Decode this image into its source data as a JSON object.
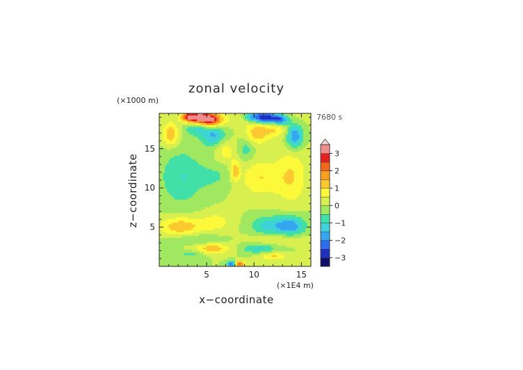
{
  "chart_data": {
    "type": "heatmap",
    "title": "zonal velocity",
    "xlabel": "x−coordinate",
    "ylabel": "z−coordinate",
    "x_unit_label": "(×1E4 m)",
    "y_unit_label": "(×1000 m)",
    "time_label": "7680 s",
    "xlim": [
      0,
      16
    ],
    "ylim": [
      0,
      19.5
    ],
    "x_ticks": [
      5,
      10,
      15
    ],
    "y_ticks": [
      5,
      10,
      15
    ],
    "grid": false,
    "colorbar": {
      "levels": [
        -3.5,
        -3.0,
        -2.5,
        -2.0,
        -1.5,
        -1.0,
        -0.5,
        0.0,
        0.5,
        1.0,
        1.5,
        2.0,
        2.5,
        3.0,
        3.5
      ],
      "colors": [
        "#10106a",
        "#1f2fc0",
        "#2f6cf0",
        "#35a6f0",
        "#3fd3d9",
        "#40e0a8",
        "#a0e860",
        "#d7f050",
        "#fcf83a",
        "#fcc830",
        "#f7a020",
        "#f06818",
        "#e52020",
        "#f08e8e"
      ],
      "tick_values": [
        -3,
        -2,
        -1,
        0,
        1,
        2,
        3
      ],
      "tick_labels": [
        "−3",
        "−2",
        "−1",
        "0",
        "1",
        "2",
        "3"
      ],
      "extend": "max"
    },
    "features_note_free": true,
    "features": [
      {
        "x": 8.0,
        "z": 19.0,
        "sx": 5.5,
        "sz": 0.8,
        "v": 0.35
      },
      {
        "x": 4.2,
        "z": 19.0,
        "sx": 0.9,
        "sz": 0.55,
        "v": 3.2
      },
      {
        "x": 5.6,
        "z": 18.6,
        "sx": 0.8,
        "sz": 0.6,
        "v": 2.4
      },
      {
        "x": 3.0,
        "z": 19.1,
        "sx": 0.5,
        "sz": 0.4,
        "v": 1.6
      },
      {
        "x": 11.2,
        "z": 19.0,
        "sx": 0.9,
        "sz": 0.55,
        "v": -3.3
      },
      {
        "x": 12.8,
        "z": 18.7,
        "sx": 0.6,
        "sz": 0.45,
        "v": -2.3
      },
      {
        "x": 9.7,
        "z": 19.1,
        "sx": 0.6,
        "sz": 0.4,
        "v": -1.4
      },
      {
        "x": 3.8,
        "z": 17.6,
        "sx": 0.8,
        "sz": 0.6,
        "v": -1.0
      },
      {
        "x": 5.7,
        "z": 16.8,
        "sx": 0.9,
        "sz": 1.0,
        "v": -1.6
      },
      {
        "x": 1.2,
        "z": 16.8,
        "sx": 0.6,
        "sz": 1.0,
        "v": 1.5
      },
      {
        "x": 7.0,
        "z": 14.8,
        "sx": 0.7,
        "sz": 1.0,
        "v": 0.8
      },
      {
        "x": 10.3,
        "z": 17.0,
        "sx": 0.9,
        "sz": 1.0,
        "v": 1.3
      },
      {
        "x": 12.2,
        "z": 17.5,
        "sx": 0.9,
        "sz": 0.7,
        "v": 0.9
      },
      {
        "x": 14.3,
        "z": 16.6,
        "sx": 0.6,
        "sz": 1.1,
        "v": -2.1
      },
      {
        "x": 9.2,
        "z": 15.0,
        "sx": 0.6,
        "sz": 1.0,
        "v": -0.8
      },
      {
        "x": 2.3,
        "z": 11.4,
        "sx": 1.6,
        "sz": 2.6,
        "v": -0.95
      },
      {
        "x": 5.8,
        "z": 11.5,
        "sx": 1.6,
        "sz": 1.1,
        "v": -0.55
      },
      {
        "x": 10.7,
        "z": 11.3,
        "sx": 1.6,
        "sz": 1.6,
        "v": 1.0
      },
      {
        "x": 14.0,
        "z": 11.5,
        "sx": 1.1,
        "sz": 2.6,
        "v": 0.95
      },
      {
        "x": 8.0,
        "z": 12.2,
        "sx": 0.35,
        "sz": 0.9,
        "v": 1.4
      },
      {
        "x": 2.3,
        "z": 5.1,
        "sx": 1.6,
        "sz": 0.9,
        "v": 1.4
      },
      {
        "x": 6.0,
        "z": 5.7,
        "sx": 1.2,
        "sz": 0.9,
        "v": 0.7
      },
      {
        "x": 11.3,
        "z": 5.2,
        "sx": 1.2,
        "sz": 0.9,
        "v": -1.1
      },
      {
        "x": 13.8,
        "z": 5.2,
        "sx": 1.1,
        "sz": 0.9,
        "v": -1.9
      },
      {
        "x": 3.6,
        "z": 3.5,
        "sx": 2.0,
        "sz": 0.5,
        "v": -0.65
      },
      {
        "x": 12.5,
        "z": 3.5,
        "sx": 2.2,
        "sz": 0.5,
        "v": 0.65
      },
      {
        "x": 5.6,
        "z": 2.3,
        "sx": 1.3,
        "sz": 0.45,
        "v": 1.4
      },
      {
        "x": 10.5,
        "z": 2.3,
        "sx": 1.3,
        "sz": 0.45,
        "v": -1.1
      },
      {
        "x": 3.4,
        "z": 1.6,
        "sx": 1.0,
        "sz": 0.35,
        "v": -0.7
      },
      {
        "x": 12.0,
        "z": 1.3,
        "sx": 1.0,
        "sz": 0.35,
        "v": 1.1
      },
      {
        "x": 7.6,
        "z": 0.3,
        "sx": 0.3,
        "sz": 0.3,
        "v": -2.3
      },
      {
        "x": 8.5,
        "z": 0.3,
        "sx": 0.35,
        "sz": 0.3,
        "v": 2.3
      }
    ]
  }
}
